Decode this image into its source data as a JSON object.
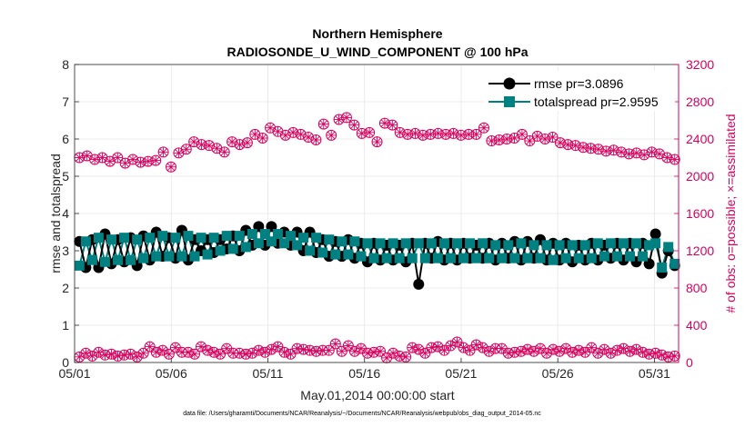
{
  "chart_data": {
    "type": "line",
    "title": "Northern Hemisphere",
    "subtitle": "RADIOSONDE_U_WIND_COMPONENT @ 100 hPa",
    "xlabel": "May.01,2014 00:00:00 start",
    "ylabel": "rmse and totalspread",
    "ylabel_right": "# of obs: o=possible; ×=assimilated",
    "footnote": "data file: /Users/gharamti/Documents/NCAR/Reanalysis/~/Documents/NCAR/Reanalysis/webpub/obs_diag_output_2014-05.nc",
    "x_ticks": [
      "05/01",
      "05/06",
      "05/11",
      "05/16",
      "05/21",
      "05/26",
      "05/31"
    ],
    "x_tick_values": [
      0,
      5,
      10,
      15,
      20,
      25,
      30
    ],
    "xlim": [
      0,
      31.25
    ],
    "y_ticks": [
      "0",
      "1",
      "2",
      "3",
      "4",
      "5",
      "6",
      "7",
      "8"
    ],
    "ylim": [
      0,
      8
    ],
    "y2_ticks": [
      "0",
      "400",
      "800",
      "1200",
      "1600",
      "2000",
      "2400",
      "2800",
      "3200"
    ],
    "y2lim": [
      0,
      3200
    ],
    "grid": true,
    "legend_position": "top-right",
    "colors": {
      "rmse": "#000000",
      "totalspread": "#008080",
      "obs": "#d6005d"
    },
    "series": [
      {
        "name": "rmse pr=3.0896",
        "axis": "left",
        "values": [
          3.25,
          2.55,
          3.3,
          2.55,
          3.45,
          2.65,
          3.3,
          2.7,
          3.35,
          2.6,
          3.4,
          2.75,
          3.5,
          2.85,
          3.35,
          2.8,
          3.55,
          2.75,
          3.3,
          3.0,
          3.3,
          2.95,
          3.3,
          3.05,
          3.4,
          3.0,
          3.55,
          3.15,
          3.65,
          3.15,
          3.65,
          3.2,
          3.5,
          3.15,
          3.5,
          3.0,
          3.5,
          2.95,
          3.3,
          2.85,
          3.25,
          2.85,
          3.3,
          2.8,
          3.2,
          2.7,
          3.2,
          2.75,
          3.15,
          2.75,
          3.15,
          2.7,
          3.2,
          2.1,
          3.2,
          2.8,
          3.25,
          2.75,
          3.2,
          2.75,
          3.2,
          2.8,
          3.15,
          2.8,
          3.2,
          2.75,
          3.2,
          2.8,
          3.25,
          2.75,
          3.25,
          2.8,
          3.3,
          2.75,
          3.2,
          2.75,
          3.2,
          2.7,
          3.15,
          2.75,
          3.2,
          2.75,
          3.15,
          2.8,
          3.2,
          2.75,
          3.2,
          2.7,
          3.2,
          2.65,
          3.45,
          2.4,
          3.0,
          2.6
        ]
      },
      {
        "name": "totalspread pr=2.9595",
        "axis": "left",
        "values": [
          2.6,
          3.25,
          2.75,
          3.35,
          2.7,
          3.3,
          2.75,
          3.35,
          2.75,
          3.3,
          2.8,
          3.35,
          2.85,
          3.4,
          2.85,
          3.35,
          2.85,
          3.4,
          2.85,
          3.35,
          2.9,
          3.35,
          3.0,
          3.4,
          3.05,
          3.4,
          3.1,
          3.45,
          3.2,
          3.45,
          3.25,
          3.45,
          3.2,
          3.4,
          3.15,
          3.35,
          3.0,
          3.35,
          2.95,
          3.3,
          2.9,
          3.25,
          2.9,
          3.25,
          2.85,
          3.2,
          2.8,
          3.2,
          2.8,
          3.2,
          2.8,
          3.2,
          2.8,
          3.2,
          2.8,
          3.2,
          2.8,
          3.2,
          2.8,
          3.2,
          2.8,
          3.2,
          2.8,
          3.2,
          2.8,
          3.15,
          2.8,
          3.15,
          2.8,
          3.2,
          2.8,
          3.15,
          2.8,
          3.15,
          2.75,
          3.15,
          2.8,
          3.15,
          2.8,
          3.15,
          2.8,
          3.2,
          2.85,
          3.2,
          2.85,
          3.2,
          2.85,
          3.2,
          2.85,
          3.15,
          3.2,
          2.55,
          3.1,
          2.65
        ]
      },
      {
        "name": "assimilated",
        "axis": "right",
        "marker": "circle-star",
        "values": [
          2200,
          2220,
          2180,
          2200,
          2160,
          2200,
          2140,
          2180,
          2150,
          2160,
          2170,
          2260,
          2100,
          2250,
          2290,
          2370,
          2340,
          2330,
          2300,
          2260,
          2370,
          2340,
          2360,
          2450,
          2410,
          2520,
          2480,
          2440,
          2470,
          2450,
          2420,
          2390,
          2560,
          2440,
          2610,
          2630,
          2550,
          2460,
          2470,
          2370,
          2570,
          2550,
          2470,
          2450,
          2460,
          2440,
          2450,
          2460,
          2450,
          2460,
          2440,
          2450,
          2450,
          2520,
          2380,
          2390,
          2400,
          2410,
          2450,
          2380,
          2430,
          2400,
          2420,
          2360,
          2340,
          2330,
          2310,
          2300,
          2290,
          2270,
          2280,
          2260,
          2240,
          2250,
          2230,
          2260,
          2240,
          2200,
          2180
        ]
      },
      {
        "name": "possible",
        "axis": "right",
        "marker": "circle-star",
        "values": [
          60,
          100,
          70,
          110,
          80,
          90,
          70,
          80,
          90,
          60,
          100,
          170,
          110,
          130,
          90,
          160,
          110,
          110,
          90,
          170,
          130,
          110,
          90,
          150,
          100,
          100,
          90,
          100,
          130,
          110,
          140,
          170,
          110,
          90,
          150,
          140,
          130,
          120,
          130,
          130,
          200,
          120,
          180,
          120,
          150,
          100,
          110,
          120,
          50,
          100,
          70,
          60,
          160,
          140,
          100,
          160,
          170,
          130,
          180,
          220,
          160,
          130,
          190,
          160,
          120,
          150,
          150,
          100,
          110,
          120,
          140,
          120,
          150,
          100,
          140,
          120,
          150,
          110,
          130,
          110,
          160,
          100,
          140,
          100,
          130,
          150,
          120,
          140,
          110,
          90,
          100,
          80,
          60,
          70
        ]
      }
    ]
  }
}
